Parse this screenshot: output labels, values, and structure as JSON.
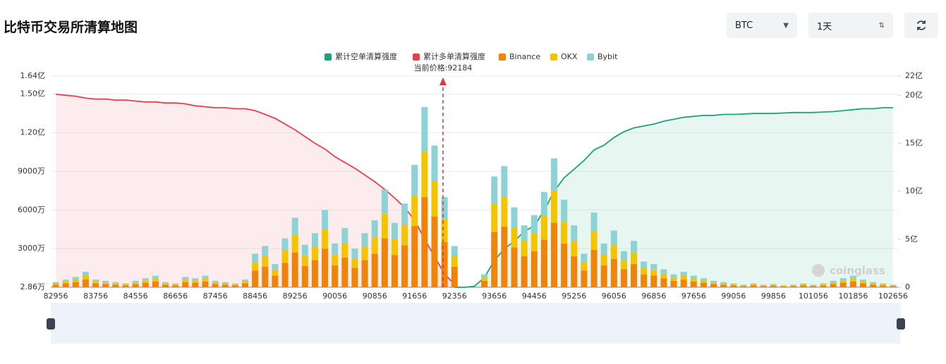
{
  "header": {
    "title": "比特币交易所清算地图",
    "symbol": "BTC",
    "period": "1天"
  },
  "chart_data": {
    "type": "bar",
    "stacked": true,
    "annotation": "当前价格:92184",
    "watermark": "coinglass",
    "categories": [
      "82956",
      null,
      null,
      null,
      "83756",
      null,
      null,
      null,
      "84556",
      null,
      null,
      null,
      "86656",
      null,
      null,
      null,
      "87456",
      null,
      null,
      null,
      "88456",
      null,
      null,
      null,
      "89256",
      null,
      null,
      null,
      "90056",
      null,
      null,
      null,
      "90856",
      null,
      null,
      null,
      "91656",
      null,
      null,
      null,
      "92356",
      null,
      null,
      null,
      "93656",
      null,
      null,
      null,
      "94456",
      null,
      null,
      null,
      "95256",
      null,
      null,
      null,
      "96056",
      null,
      null,
      null,
      "96856",
      null,
      null,
      null,
      "97656",
      null,
      null,
      null,
      "99056",
      null,
      null,
      null,
      "99856",
      null,
      null,
      null,
      "101056",
      null,
      null,
      null,
      "101856",
      null,
      null,
      null,
      "102656"
    ],
    "ylim": [
      2.86,
      16400
    ],
    "yticks": [
      {
        "value": 2.86,
        "label": "2.86万"
      },
      {
        "value": 3000,
        "label": "3000万"
      },
      {
        "value": 6000,
        "label": "6000万"
      },
      {
        "value": 9000,
        "label": "9000万"
      },
      {
        "value": 12000,
        "label": "1.20亿"
      },
      {
        "value": 15000,
        "label": "1.50亿"
      },
      {
        "value": 16400,
        "label": "1.64亿"
      }
    ],
    "y2lim": [
      0,
      22
    ],
    "y2ticks": [
      0,
      {
        "value": 5,
        "label": "5亿"
      },
      {
        "value": 10,
        "label": "10亿"
      },
      {
        "value": 15,
        "label": "15亿"
      },
      {
        "value": 20,
        "label": "20亿"
      },
      {
        "value": 22,
        "label": "22亿"
      }
    ],
    "grid": true,
    "series": [
      {
        "name": "累计空单清算强度",
        "type": "line",
        "axis": "y2",
        "color": "#1aa37a",
        "values": [
          null,
          null,
          null,
          null,
          null,
          null,
          null,
          null,
          null,
          null,
          null,
          null,
          null,
          null,
          null,
          null,
          null,
          null,
          null,
          null,
          null,
          null,
          null,
          null,
          null,
          null,
          null,
          null,
          null,
          null,
          null,
          null,
          null,
          null,
          null,
          null,
          null,
          null,
          null,
          null,
          0,
          0,
          0.1,
          1.0,
          2.8,
          4.0,
          4.8,
          5.8,
          6.4,
          8.0,
          10.0,
          11.4,
          12.3,
          13.2,
          14.3,
          14.8,
          15.6,
          16.2,
          16.6,
          16.8,
          17.0,
          17.3,
          17.5,
          17.7,
          17.8,
          17.9,
          17.9,
          18.0,
          18.0,
          18.05,
          18.1,
          18.1,
          18.1,
          18.15,
          18.2,
          18.2,
          18.2,
          18.25,
          18.3,
          18.4,
          18.5,
          18.6,
          18.6,
          18.7,
          18.7
        ]
      },
      {
        "name": "累计多单清算强度",
        "type": "line",
        "axis": "y2",
        "color": "#e8404a",
        "values": [
          20.1,
          20,
          19.9,
          19.7,
          19.6,
          19.6,
          19.5,
          19.5,
          19.4,
          19.3,
          19.3,
          19.2,
          19.2,
          19.1,
          18.9,
          18.8,
          18.7,
          18.7,
          18.6,
          18.6,
          18.4,
          18.0,
          17.6,
          17.0,
          16.4,
          15.7,
          15.0,
          14.4,
          13.6,
          13.0,
          12.4,
          11.7,
          11.0,
          10.2,
          9.3,
          8.3,
          7.0,
          5.0,
          3.2,
          1.4,
          0.3,
          null,
          null,
          null,
          null,
          null,
          null,
          null,
          null,
          null,
          null,
          null,
          null,
          null,
          null,
          null,
          null,
          null,
          null,
          null,
          null,
          null,
          null,
          null,
          null,
          null,
          null,
          null,
          null,
          null,
          null,
          null,
          null,
          null,
          null,
          null,
          null,
          null,
          null,
          null,
          null,
          null,
          null,
          null,
          null
        ]
      },
      {
        "name": "Binance",
        "type": "bar",
        "color": "#f0830a",
        "values": [
          200,
          300,
          400,
          600,
          300,
          250,
          200,
          150,
          250,
          350,
          450,
          200,
          150,
          400,
          350,
          450,
          250,
          200,
          150,
          300,
          1300,
          1600,
          900,
          1900,
          2700,
          1650,
          2100,
          3000,
          1700,
          2300,
          1500,
          2100,
          2600,
          3800,
          2500,
          3250,
          4750,
          7000,
          5500,
          3500,
          1600,
          0,
          0,
          500,
          4300,
          4700,
          3100,
          2400,
          2800,
          3700,
          5000,
          3400,
          2400,
          1300,
          2900,
          1700,
          2200,
          1400,
          1800,
          1000,
          900,
          700,
          500,
          600,
          450,
          350,
          250,
          200,
          150,
          100,
          150,
          100,
          125,
          75,
          100,
          150,
          100,
          150,
          250,
          350,
          450,
          300,
          200,
          150,
          100
        ]
      },
      {
        "name": "OKX",
        "type": "bar",
        "color": "#f5c400",
        "values": [
          100,
          150,
          200,
          300,
          150,
          125,
          100,
          75,
          125,
          175,
          225,
          100,
          75,
          200,
          175,
          225,
          125,
          100,
          75,
          150,
          650,
          800,
          450,
          950,
          1350,
          825,
          1050,
          1500,
          850,
          1150,
          750,
          1050,
          1300,
          1900,
          1250,
          1625,
          2375,
          3500,
          2750,
          1750,
          800,
          0,
          0,
          250,
          2150,
          2350,
          1550,
          1200,
          1400,
          1850,
          2500,
          1700,
          1200,
          650,
          1450,
          850,
          1100,
          700,
          900,
          500,
          450,
          350,
          250,
          300,
          225,
          175,
          125,
          100,
          75,
          50,
          75,
          50,
          62.5,
          37.5,
          50,
          75,
          50,
          75,
          125,
          175,
          225,
          150,
          100,
          75,
          50
        ]
      },
      {
        "name": "Bybit",
        "type": "bar",
        "color": "#8dd3d6",
        "values": [
          100,
          150,
          200,
          300,
          150,
          125,
          100,
          75,
          125,
          175,
          225,
          100,
          75,
          200,
          175,
          225,
          125,
          100,
          75,
          150,
          650,
          800,
          450,
          950,
          1350,
          825,
          1050,
          1500,
          850,
          1150,
          750,
          1050,
          1300,
          1900,
          1250,
          1625,
          2375,
          3500,
          2750,
          1750,
          800,
          0,
          0,
          250,
          2150,
          2350,
          1550,
          1200,
          1400,
          1850,
          2500,
          1700,
          1200,
          650,
          1450,
          850,
          1100,
          700,
          900,
          500,
          450,
          350,
          250,
          300,
          225,
          175,
          125,
          100,
          75,
          50,
          75,
          50,
          62.5,
          37.5,
          50,
          75,
          50,
          75,
          125,
          175,
          225,
          150,
          100,
          75,
          50
        ]
      }
    ]
  }
}
